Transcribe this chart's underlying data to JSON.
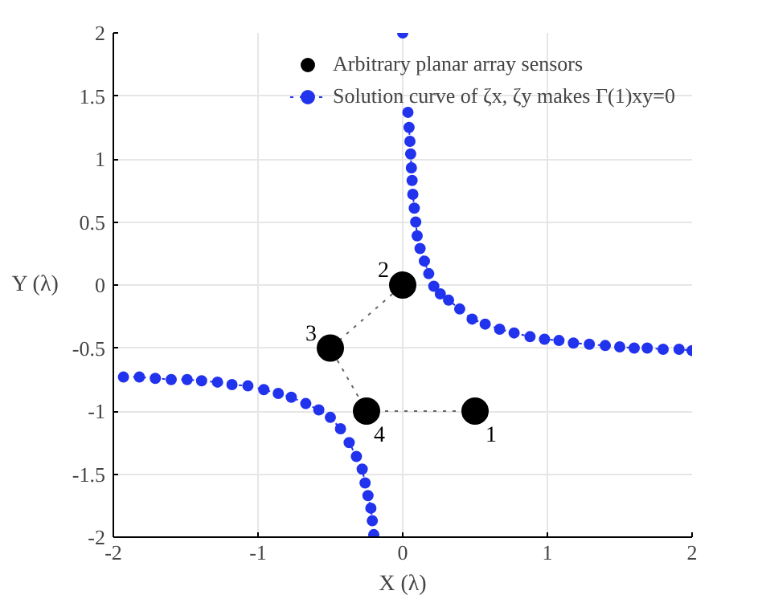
{
  "chart_data": {
    "type": "scatter",
    "xlabel": "X (λ)",
    "ylabel": "Y (λ)",
    "xlim": [
      -2,
      2
    ],
    "ylim": [
      -2,
      2
    ],
    "xticks": [
      -2,
      -1,
      0,
      1,
      2
    ],
    "yticks": [
      -2,
      -1.5,
      -1,
      -0.5,
      0,
      0.5,
      1,
      1.5,
      2
    ],
    "grid": true,
    "legend": "top right",
    "series": [
      {
        "type": "line",
        "color": "#666666",
        "line_style": "dotted",
        "marker": "none",
        "x": [
          0.5,
          -0.25,
          -0.5,
          0
        ],
        "values": [
          -1,
          -1,
          -0.5,
          0
        ]
      },
      {
        "name": "Arbitrary planar array sensors",
        "color": "#000000",
        "marker": "circle",
        "x": [
          0.5,
          0,
          -0.5,
          -0.25
        ],
        "values": [
          -1,
          0,
          -0.5,
          -1
        ]
      },
      {
        "type": "line",
        "name": "Solution curve of ζx, ζy makes Γ(1)xy=0",
        "color": "#2233ee",
        "line_style": "dotted",
        "marker": "circle",
        "x": [
          0.0,
          null,
          0.036,
          0.044,
          0.05,
          0.055,
          0.06,
          0.065,
          0.07,
          0.08,
          0.09,
          0.1,
          0.12,
          0.15,
          0.18,
          0.215,
          0.26,
          0.317,
          0.394,
          0.48,
          0.57,
          0.67,
          0.77,
          0.88,
          0.98,
          1.08,
          1.18,
          1.29,
          1.4,
          1.5,
          1.6,
          1.69,
          1.8,
          1.91,
          2.0,
          null,
          -1.93,
          -1.82,
          -1.71,
          -1.6,
          -1.49,
          -1.39,
          -1.28,
          -1.18,
          -1.07,
          -0.96,
          -0.86,
          -0.77,
          -0.67,
          -0.58,
          -0.5,
          -0.43,
          -0.37,
          -0.32,
          -0.28,
          -0.26,
          -0.24,
          -0.22,
          -0.21,
          -0.2
        ],
        "values": [
          2.0,
          null,
          1.37,
          1.25,
          1.14,
          1.04,
          0.93,
          0.83,
          0.72,
          0.61,
          0.5,
          0.39,
          0.29,
          0.19,
          0.09,
          -0.01,
          -0.07,
          -0.12,
          -0.19,
          -0.27,
          -0.31,
          -0.35,
          -0.38,
          -0.41,
          -0.43,
          -0.44,
          -0.46,
          -0.47,
          -0.48,
          -0.49,
          -0.5,
          -0.5,
          -0.51,
          -0.51,
          -0.52,
          null,
          -0.73,
          -0.73,
          -0.74,
          -0.75,
          -0.75,
          -0.76,
          -0.77,
          -0.79,
          -0.8,
          -0.83,
          -0.86,
          -0.89,
          -0.94,
          -0.99,
          -1.05,
          -1.14,
          -1.25,
          -1.36,
          -1.46,
          -1.57,
          -1.67,
          -1.77,
          -1.87,
          -1.98
        ]
      }
    ],
    "annotations": [
      {
        "text": "1",
        "x": 0.5,
        "y": -1
      },
      {
        "text": "2",
        "x": 0,
        "y": 0
      },
      {
        "text": "3",
        "x": -0.5,
        "y": -0.5
      },
      {
        "text": "4",
        "x": -0.25,
        "y": -1
      }
    ]
  }
}
